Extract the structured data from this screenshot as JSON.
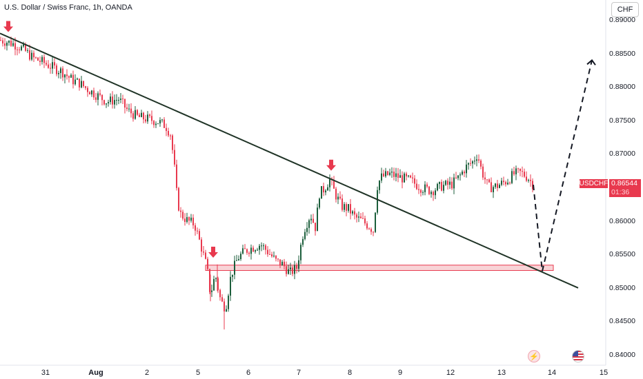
{
  "header": {
    "title": "U.S. Dollar / Swiss Franc, 1h, OANDA",
    "currency_button": "CHF"
  },
  "price_label": {
    "symbol": "USDCHF",
    "price": "0.86544",
    "countdown": "01:36"
  },
  "colors": {
    "up": "#089981",
    "down": "#e8394e",
    "upCandle": "#1b5e3b",
    "downCandle": "#e8394e",
    "trendline": "#1f3326",
    "zone_fill": "#f6c9cd",
    "zone_stroke": "#e8394e",
    "arrow": "#e8394e"
  },
  "chart_data": {
    "type": "candlestick",
    "instrument": "USDCHF",
    "timeframe": "1h",
    "y_ticks": [
      "0.89000",
      "0.88500",
      "0.88000",
      "0.87500",
      "0.87000",
      "0.86500",
      "0.86000",
      "0.85500",
      "0.85000",
      "0.84500",
      "0.84000"
    ],
    "x_ticks": [
      {
        "label": "31",
        "bold": false
      },
      {
        "label": "Aug",
        "bold": true
      },
      {
        "label": "2",
        "bold": false
      },
      {
        "label": "5",
        "bold": false
      },
      {
        "label": "6",
        "bold": false
      },
      {
        "label": "7",
        "bold": false
      },
      {
        "label": "8",
        "bold": false
      },
      {
        "label": "9",
        "bold": false
      },
      {
        "label": "12",
        "bold": false
      },
      {
        "label": "13",
        "bold": false
      },
      {
        "label": "14",
        "bold": false
      },
      {
        "label": "15",
        "bold": false
      }
    ],
    "ylim": [
      0.8395,
      0.8913
    ],
    "close_path": [
      [
        0,
        0.887
      ],
      [
        8,
        0.8868
      ],
      [
        15,
        0.8866
      ],
      [
        25,
        0.8862
      ],
      [
        35,
        0.8855
      ],
      [
        48,
        0.8843
      ],
      [
        60,
        0.8838
      ],
      [
        75,
        0.883
      ],
      [
        90,
        0.8823
      ],
      [
        105,
        0.881
      ],
      [
        115,
        0.8806
      ],
      [
        125,
        0.8798
      ],
      [
        140,
        0.8788
      ],
      [
        155,
        0.8778
      ],
      [
        172,
        0.8782
      ],
      [
        185,
        0.8765
      ],
      [
        200,
        0.8755
      ],
      [
        215,
        0.8752
      ],
      [
        230,
        0.8748
      ],
      [
        240,
        0.8742
      ],
      [
        247,
        0.873
      ],
      [
        252,
        0.869
      ],
      [
        257,
        0.863
      ],
      [
        262,
        0.861
      ],
      [
        272,
        0.86
      ],
      [
        282,
        0.8595
      ],
      [
        292,
        0.856
      ],
      [
        300,
        0.853
      ],
      [
        305,
        0.849
      ],
      [
        312,
        0.852
      ],
      [
        320,
        0.848
      ],
      [
        327,
        0.847
      ],
      [
        335,
        0.852
      ],
      [
        345,
        0.8545
      ],
      [
        355,
        0.8555
      ],
      [
        365,
        0.856
      ],
      [
        378,
        0.8565
      ],
      [
        390,
        0.8552
      ],
      [
        400,
        0.854
      ],
      [
        410,
        0.8535
      ],
      [
        420,
        0.8522
      ],
      [
        430,
        0.853
      ],
      [
        440,
        0.8585
      ],
      [
        450,
        0.861
      ],
      [
        458,
        0.8588
      ],
      [
        462,
        0.864
      ],
      [
        470,
        0.8648
      ],
      [
        478,
        0.8662
      ],
      [
        486,
        0.864
      ],
      [
        495,
        0.8622
      ],
      [
        505,
        0.8618
      ],
      [
        515,
        0.8605
      ],
      [
        525,
        0.86
      ],
      [
        535,
        0.8592
      ],
      [
        542,
        0.8585
      ],
      [
        546,
        0.865
      ],
      [
        552,
        0.8665
      ],
      [
        565,
        0.867
      ],
      [
        580,
        0.8665
      ],
      [
        595,
        0.866
      ],
      [
        610,
        0.865
      ],
      [
        625,
        0.8645
      ],
      [
        640,
        0.8652
      ],
      [
        655,
        0.8655
      ],
      [
        665,
        0.8665
      ],
      [
        675,
        0.868
      ],
      [
        685,
        0.8688
      ],
      [
        692,
        0.87
      ],
      [
        698,
        0.8675
      ],
      [
        708,
        0.865
      ],
      [
        720,
        0.8652
      ],
      [
        735,
        0.866
      ],
      [
        745,
        0.867
      ],
      [
        755,
        0.8672
      ],
      [
        765,
        0.8665
      ],
      [
        773,
        0.8654
      ]
    ],
    "trendline": {
      "from": {
        "x": 0,
        "price": 0.888
      },
      "to": {
        "x": 838,
        "price": 0.85
      }
    },
    "support_zone": {
      "x_from": 298,
      "x_to": 802,
      "price_top": 0.8534,
      "price_bottom": 0.8526
    },
    "projection": [
      [
        773,
        0.8654
      ],
      [
        786,
        0.8525
      ],
      [
        858,
        0.884
      ]
    ],
    "marker_arrows": [
      {
        "x": 12,
        "price": 0.8882
      },
      {
        "x": 480,
        "price": 0.8675
      },
      {
        "x": 309,
        "price": 0.8545
      }
    ]
  }
}
